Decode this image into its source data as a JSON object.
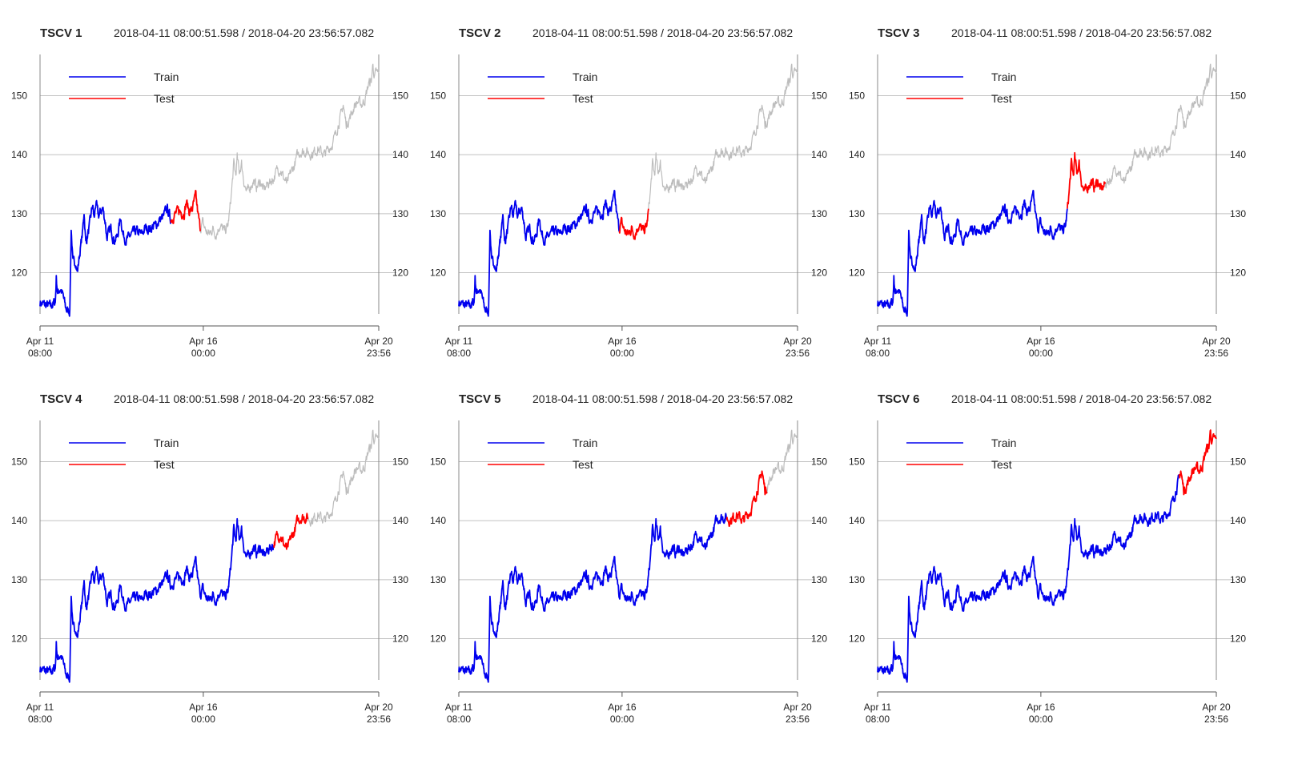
{
  "colors": {
    "train": "#0000ee",
    "test": "#ff0000",
    "remaining": "#bdbdbd",
    "grid": "#c0c0c0",
    "axis": "#555555"
  },
  "legend": {
    "train": "Train",
    "test": "Test"
  },
  "chart_data": [
    {
      "type": "line",
      "title": "TSCV 1",
      "subtitle": "2018-04-11 08:00:51.598 / 2018-04-20 23:56:57.082",
      "train_end": 0.386,
      "test_end": 0.473
    },
    {
      "type": "line",
      "title": "TSCV 2",
      "subtitle": "2018-04-11 08:00:51.598 / 2018-04-20 23:56:57.082",
      "train_end": 0.473,
      "test_end": 0.56
    },
    {
      "type": "line",
      "title": "TSCV 3",
      "subtitle": "2018-04-11 08:00:51.598 / 2018-04-20 23:56:57.082",
      "train_end": 0.56,
      "test_end": 0.672
    },
    {
      "type": "line",
      "title": "TSCV 4",
      "subtitle": "2018-04-11 08:00:51.598 / 2018-04-20 23:56:57.082",
      "train_end": 0.69,
      "test_end": 0.79
    },
    {
      "type": "line",
      "title": "TSCV 5",
      "subtitle": "2018-04-11 08:00:51.598 / 2018-04-20 23:56:57.082",
      "train_end": 0.79,
      "test_end": 0.91
    },
    {
      "type": "line",
      "title": "TSCV 6",
      "subtitle": "2018-04-11 08:00:51.598 / 2018-04-20 23:56:57.082",
      "train_end": 0.89,
      "test_end": 1.0
    }
  ],
  "shared": {
    "ylim": [
      113,
      157
    ],
    "y_ticks": [
      120,
      130,
      140,
      150
    ],
    "x_ticks": [
      {
        "frac": 0.0,
        "line1": "Apr 11",
        "line2": "08:00"
      },
      {
        "frac": 0.482,
        "line1": "Apr 16",
        "line2": "00:00"
      },
      {
        "frac": 1.0,
        "line1": "Apr 20",
        "line2": "23:56"
      }
    ],
    "series_knots": [
      [
        0.0,
        115.0
      ],
      [
        0.01,
        114.6
      ],
      [
        0.03,
        114.3
      ],
      [
        0.045,
        115.0
      ],
      [
        0.048,
        119.2
      ],
      [
        0.052,
        116.5
      ],
      [
        0.06,
        117.4
      ],
      [
        0.068,
        116.0
      ],
      [
        0.075,
        114.2
      ],
      [
        0.08,
        113.5
      ],
      [
        0.088,
        113.6
      ],
      [
        0.092,
        127.5
      ],
      [
        0.097,
        121.5
      ],
      [
        0.105,
        122.0
      ],
      [
        0.11,
        120.0
      ],
      [
        0.12,
        124.5
      ],
      [
        0.126,
        127.0
      ],
      [
        0.13,
        130.5
      ],
      [
        0.135,
        125.0
      ],
      [
        0.145,
        127.5
      ],
      [
        0.155,
        131.5
      ],
      [
        0.16,
        129.0
      ],
      [
        0.165,
        132.0
      ],
      [
        0.172,
        129.5
      ],
      [
        0.185,
        131.0
      ],
      [
        0.193,
        128.5
      ],
      [
        0.197,
        126.0
      ],
      [
        0.21,
        127.5
      ],
      [
        0.218,
        125.5
      ],
      [
        0.228,
        126.0
      ],
      [
        0.238,
        129.5
      ],
      [
        0.245,
        126.5
      ],
      [
        0.255,
        125.5
      ],
      [
        0.27,
        126.5
      ],
      [
        0.285,
        127.0
      ],
      [
        0.3,
        126.5
      ],
      [
        0.31,
        127.5
      ],
      [
        0.325,
        127.5
      ],
      [
        0.34,
        128.0
      ],
      [
        0.355,
        129.0
      ],
      [
        0.365,
        129.5
      ],
      [
        0.375,
        131.0
      ],
      [
        0.386,
        129.0
      ],
      [
        0.4,
        130.0
      ],
      [
        0.41,
        130.5
      ],
      [
        0.425,
        130.0
      ],
      [
        0.432,
        132.0
      ],
      [
        0.44,
        130.5
      ],
      [
        0.448,
        130.5
      ],
      [
        0.455,
        132.0
      ],
      [
        0.46,
        133.0
      ],
      [
        0.466,
        130.0
      ],
      [
        0.473,
        127.5
      ],
      [
        0.48,
        128.5
      ],
      [
        0.49,
        127.0
      ],
      [
        0.5,
        126.5
      ],
      [
        0.51,
        127.5
      ],
      [
        0.52,
        126.5
      ],
      [
        0.53,
        128.0
      ],
      [
        0.545,
        127.0
      ],
      [
        0.555,
        128.0
      ],
      [
        0.56,
        130.5
      ],
      [
        0.566,
        134.0
      ],
      [
        0.572,
        138.5
      ],
      [
        0.578,
        136.5
      ],
      [
        0.582,
        139.5
      ],
      [
        0.588,
        137.0
      ],
      [
        0.595,
        138.5
      ],
      [
        0.602,
        135.5
      ],
      [
        0.61,
        133.5
      ],
      [
        0.62,
        134.5
      ],
      [
        0.63,
        135.5
      ],
      [
        0.64,
        134.5
      ],
      [
        0.65,
        135.5
      ],
      [
        0.66,
        134.0
      ],
      [
        0.672,
        135.0
      ],
      [
        0.69,
        136.0
      ],
      [
        0.7,
        137.5
      ],
      [
        0.71,
        137.5
      ],
      [
        0.72,
        136.0
      ],
      [
        0.73,
        135.0
      ],
      [
        0.74,
        137.0
      ],
      [
        0.75,
        138.0
      ],
      [
        0.76,
        140.0
      ],
      [
        0.77,
        140.5
      ],
      [
        0.79,
        140.5
      ],
      [
        0.8,
        140.0
      ],
      [
        0.81,
        140.5
      ],
      [
        0.82,
        141.0
      ],
      [
        0.83,
        140.5
      ],
      [
        0.84,
        140.0
      ],
      [
        0.85,
        141.0
      ],
      [
        0.86,
        141.5
      ],
      [
        0.87,
        143.0
      ],
      [
        0.88,
        145.0
      ],
      [
        0.89,
        147.0
      ],
      [
        0.895,
        148.5
      ],
      [
        0.9,
        146.5
      ],
      [
        0.905,
        145.0
      ],
      [
        0.912,
        146.0
      ],
      [
        0.92,
        147.0
      ],
      [
        0.93,
        148.5
      ],
      [
        0.94,
        149.0
      ],
      [
        0.95,
        148.5
      ],
      [
        0.96,
        149.5
      ],
      [
        0.97,
        152.0
      ],
      [
        0.978,
        152.5
      ],
      [
        0.983,
        155.5
      ],
      [
        0.987,
        153.0
      ],
      [
        0.993,
        154.0
      ],
      [
        1.0,
        153.5
      ]
    ]
  }
}
